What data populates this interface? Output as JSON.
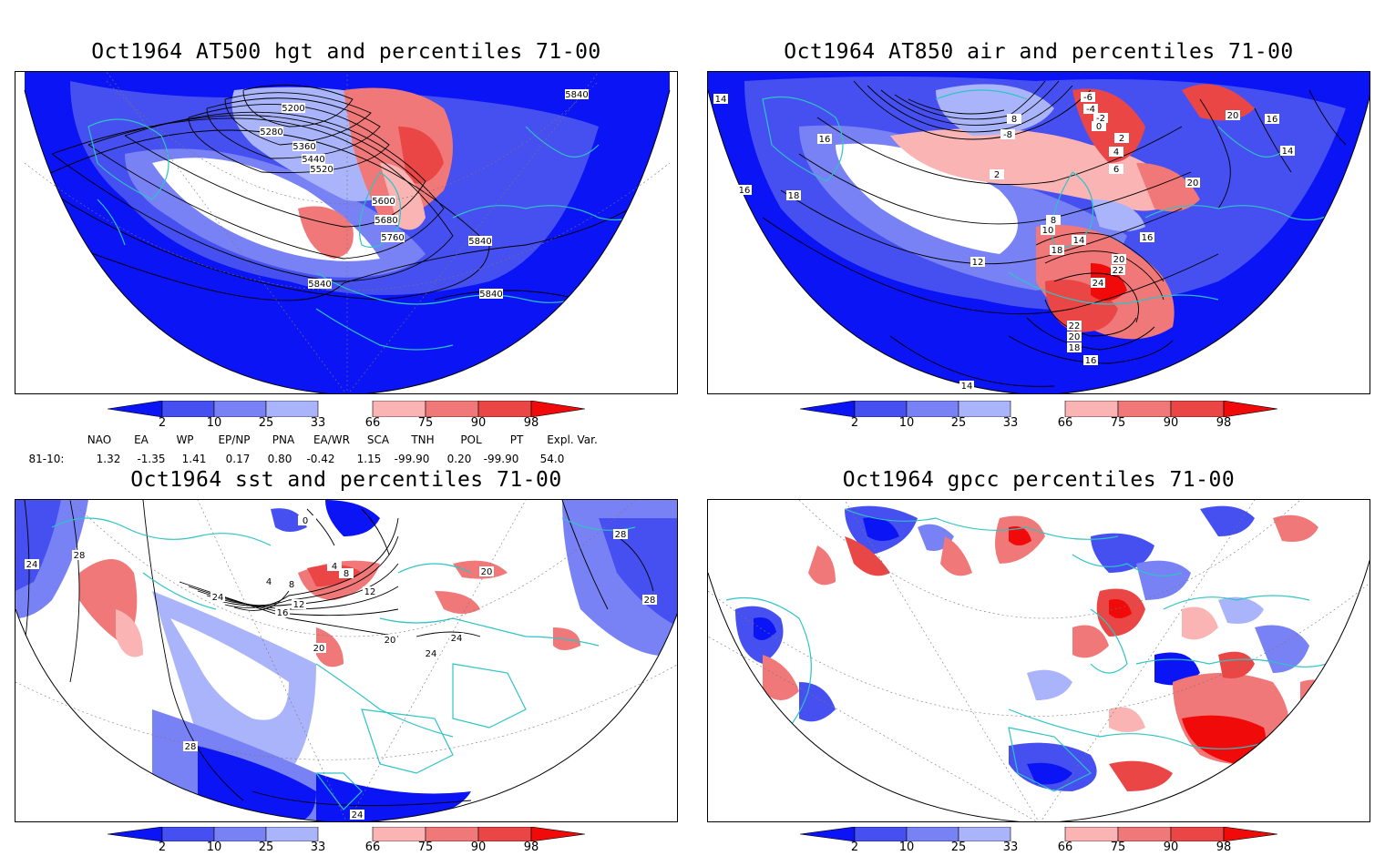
{
  "colors": {
    "deep_blue": "#0a14f5",
    "mid_blue": "#4650f0",
    "light_blue": "#7882f5",
    "pale_blue": "#aab4fa",
    "pale_red": "#fab4b4",
    "light_red": "#f07878",
    "mid_red": "#eb4646",
    "deep_red": "#f00a0a",
    "coast": "#2ec4c4",
    "contour": "#000000"
  },
  "colorbar": {
    "labels": [
      "2",
      "10",
      "25",
      "33",
      "66",
      "75",
      "90",
      "98"
    ]
  },
  "panels": [
    {
      "title": "Oct1964 AT500 hgt and percentiles 71-00",
      "contour_labels": [
        "5200",
        "5280",
        "5360",
        "5440",
        "5520",
        "5600",
        "5680",
        "5760",
        "5840",
        "5840",
        "5840",
        "5840"
      ]
    },
    {
      "title": "Oct1964 AT850 air and percentiles 71-00",
      "contour_labels": [
        "14",
        "16",
        "16",
        "18",
        "12",
        "10",
        "8",
        "-6",
        "-4",
        "-2",
        "0",
        "2",
        "-8",
        "4",
        "6",
        "2",
        "20",
        "20",
        "16",
        "14",
        "18",
        "20",
        "22",
        "24",
        "22",
        "20",
        "18",
        "16",
        "14",
        "14",
        "16",
        "8"
      ]
    },
    {
      "title": "Oct1964 sst and percentiles 71-00",
      "contour_labels": [
        "24",
        "28",
        "24",
        "4",
        "8",
        "12",
        "16",
        "20",
        "0",
        "4",
        "8",
        "12",
        "20",
        "24",
        "24",
        "20",
        "0",
        "28",
        "28",
        "28",
        "24"
      ]
    },
    {
      "title": "Oct1964 gpcc percentiles 71-00",
      "contour_labels": []
    }
  ],
  "indices": {
    "headers": [
      "NAO",
      "EA",
      "WP",
      "EP/NP",
      "PNA",
      "EA/WR",
      "SCA",
      "TNH",
      "POL",
      "PT",
      "Expl. Var."
    ],
    "row_label": "81-10:",
    "values": [
      "1.32",
      "-1.35",
      "1.41",
      "0.17",
      "0.80",
      "-0.42",
      "1.15",
      "-99.90",
      "0.20",
      "-99.90",
      "54.0"
    ]
  }
}
